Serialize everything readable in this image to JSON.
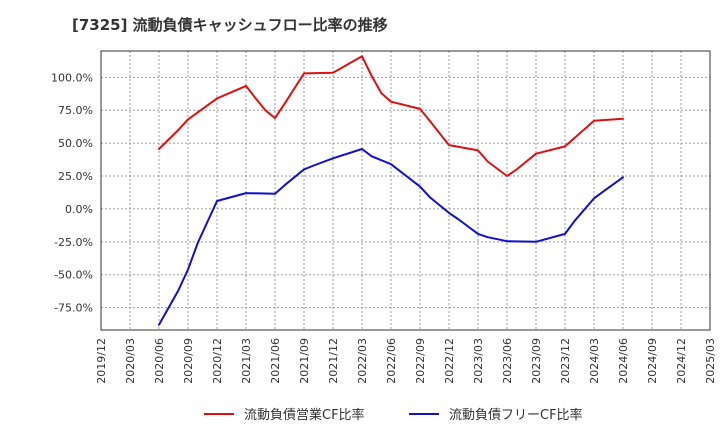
{
  "chart_data": {
    "type": "line",
    "title": "[7325]  流動負債キャッシュフロー比率の推移",
    "xlabel": "",
    "ylabel": "",
    "ylim": [
      -92,
      120
    ],
    "y_ticks": [
      100,
      75,
      50,
      25,
      0,
      -25,
      -50,
      -75
    ],
    "y_tick_labels": [
      "100.0%",
      "75.0%",
      "50.0%",
      "25.0%",
      "0.0%",
      "-25.0%",
      "-50.0%",
      "-75.0%"
    ],
    "x_tick_labels": [
      "2019/12",
      "2020/03",
      "2020/06",
      "2020/09",
      "2020/12",
      "2021/03",
      "2021/06",
      "2021/09",
      "2021/12",
      "2022/03",
      "2022/06",
      "2022/09",
      "2022/12",
      "2023/03",
      "2023/06",
      "2023/09",
      "2023/12",
      "2024/03",
      "2024/06",
      "2024/09",
      "2024/12",
      "2025/03"
    ],
    "grid": true,
    "legend_position": "bottom",
    "series": [
      {
        "name": "流動負債営業CF比率",
        "color": "#dd1111",
        "x": [
          "2020/06",
          "2020/08",
          "2020/09",
          "2020/12",
          "2021/03",
          "2021/04",
          "2021/05",
          "2021/06",
          "2021/07",
          "2021/09",
          "2021/12",
          "2022/03",
          "2022/04",
          "2022/05",
          "2022/06",
          "2022/09",
          "2022/10",
          "2022/12",
          "2023/03",
          "2023/04",
          "2023/06",
          "2023/07",
          "2023/09",
          "2023/12",
          "2024/03",
          "2024/06"
        ],
        "values": [
          45.5,
          60,
          68,
          84,
          93.5,
          84,
          75,
          69,
          80,
          103,
          103.5,
          116,
          101,
          88,
          81.5,
          76,
          67,
          48.5,
          44.5,
          36,
          25,
          30,
          42,
          47.5,
          67,
          68.5
        ]
      },
      {
        "name": "流動負債フリーCF比率",
        "color": "#1111cc",
        "x": [
          "2020/06",
          "2020/08",
          "2020/09",
          "2020/10",
          "2020/12",
          "2021/03",
          "2021/06",
          "2021/07",
          "2021/09",
          "2021/10",
          "2021/12",
          "2022/03",
          "2022/04",
          "2022/06",
          "2022/09",
          "2022/10",
          "2022/12",
          "2023/01",
          "2023/03",
          "2023/04",
          "2023/06",
          "2023/09",
          "2023/12",
          "2024/01",
          "2024/03",
          "2024/04",
          "2024/06"
        ],
        "values": [
          -88,
          -62,
          -46,
          -26,
          6,
          12,
          11.5,
          18,
          30,
          33,
          38.5,
          45.5,
          40,
          34,
          17,
          9,
          -3,
          -8,
          -19,
          -21.5,
          -24.5,
          -25,
          -19,
          -9,
          8,
          13.5,
          24
        ]
      }
    ]
  }
}
